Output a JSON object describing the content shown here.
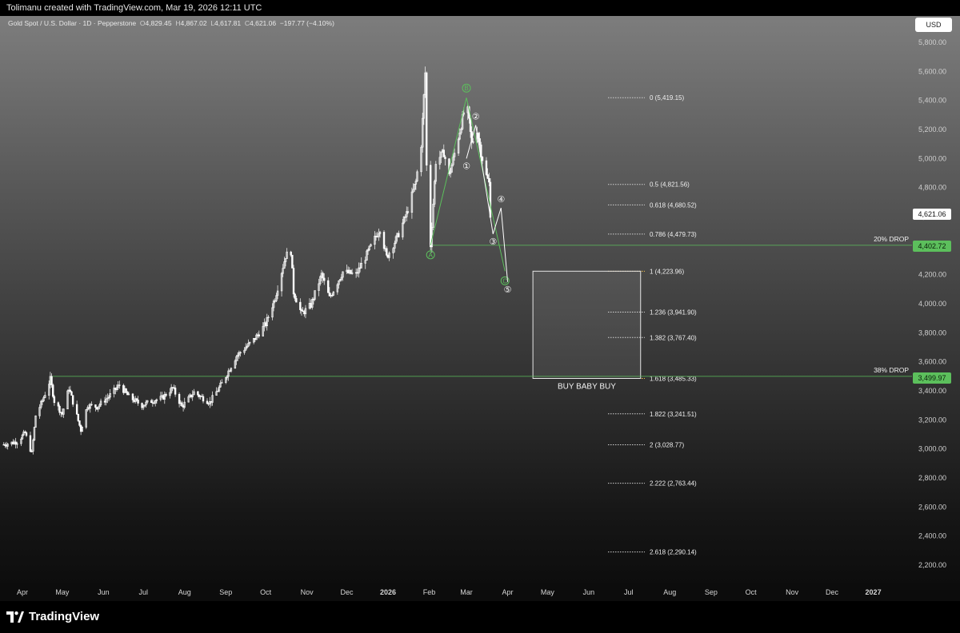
{
  "header": {
    "author_line": "Tolimanu created with TradingView.com, Mar 19, 2026 12:11 UTC"
  },
  "symbol": {
    "name": "Gold Spot / U.S. Dollar · 1D · Pepperstone",
    "o_label": "O",
    "o_value": "4,829.45",
    "h_label": "H",
    "h_value": "4,867.02",
    "l_label": "L",
    "l_value": "4,617.81",
    "c_label": "C",
    "c_value": "4,621.06",
    "change": "−197.77 (−4.10%)"
  },
  "currency_button": "USD",
  "footer": {
    "brand": "TradingView"
  },
  "colors": {
    "green": "#5cbf5c",
    "yellow": "#f2c14e",
    "candle": "#ffffff",
    "fib_dotted": "#d0d0d0"
  },
  "chart_data": {
    "type": "candlestick",
    "y_axis": {
      "ylim": [
        2100,
        5850
      ],
      "ticks": [
        2200,
        2400,
        2600,
        2800,
        3000,
        3200,
        3400,
        3600,
        3800,
        4000,
        4200,
        4400,
        4600,
        4800,
        5000,
        5200,
        5400,
        5600,
        5800
      ],
      "tick_labels": [
        "2,200.00",
        "2,400.00",
        "2,600.00",
        "2,800.00",
        "3,000.00",
        "3,200.00",
        "3,400.00",
        "3,600.00",
        "3,800.00",
        "4,000.00",
        "4,200.00",
        "4,400.00",
        "4,600.00",
        "4,800.00",
        "5,000.00",
        "5,200.00",
        "5,400.00",
        "5,600.00",
        "5,800.00"
      ]
    },
    "x_axis": {
      "labels": [
        "Apr",
        "May",
        "Jun",
        "Jul",
        "Aug",
        "Sep",
        "Oct",
        "Nov",
        "Dec",
        "2026",
        "Feb",
        "Mar",
        "Apr",
        "May",
        "Jun",
        "Jul",
        "Aug",
        "Sep",
        "Oct",
        "Nov",
        "Dec",
        "2027"
      ],
      "label_dates": [
        "2025-04-01",
        "2025-05-01",
        "2025-06-01",
        "2025-07-01",
        "2025-08-01",
        "2025-09-01",
        "2025-10-01",
        "2025-11-01",
        "2025-12-01",
        "2026-01-01",
        "2026-02-01",
        "2026-03-01",
        "2026-04-01",
        "2026-05-01",
        "2026-06-01",
        "2026-07-01",
        "2026-08-01",
        "2026-09-01",
        "2026-10-01",
        "2026-11-01",
        "2026-12-01",
        "2027-01-01"
      ]
    },
    "price_path": [
      [
        "2025-03-18",
        3030
      ],
      [
        "2025-03-28",
        3050
      ],
      [
        "2025-04-03",
        3110
      ],
      [
        "2025-04-08",
        2970
      ],
      [
        "2025-04-11",
        3230
      ],
      [
        "2025-04-16",
        3330
      ],
      [
        "2025-04-22",
        3480
      ],
      [
        "2025-04-25",
        3330
      ],
      [
        "2025-05-01",
        3240
      ],
      [
        "2025-05-06",
        3420
      ],
      [
        "2025-05-15",
        3130
      ],
      [
        "2025-05-20",
        3300
      ],
      [
        "2025-05-27",
        3290
      ],
      [
        "2025-06-05",
        3360
      ],
      [
        "2025-06-13",
        3440
      ],
      [
        "2025-06-20",
        3360
      ],
      [
        "2025-06-30",
        3300
      ],
      [
        "2025-07-07",
        3330
      ],
      [
        "2025-07-15",
        3350
      ],
      [
        "2025-07-23",
        3420
      ],
      [
        "2025-07-30",
        3290
      ],
      [
        "2025-08-08",
        3390
      ],
      [
        "2025-08-20",
        3320
      ],
      [
        "2025-08-29",
        3450
      ],
      [
        "2025-09-09",
        3640
      ],
      [
        "2025-09-22",
        3750
      ],
      [
        "2025-10-01",
        3860
      ],
      [
        "2025-10-08",
        4040
      ],
      [
        "2025-10-16",
        4330
      ],
      [
        "2025-10-20",
        4360
      ],
      [
        "2025-10-22",
        4080
      ],
      [
        "2025-10-28",
        3930
      ],
      [
        "2025-11-04",
        3990
      ],
      [
        "2025-11-12",
        4200
      ],
      [
        "2025-11-18",
        4040
      ],
      [
        "2025-11-28",
        4220
      ],
      [
        "2025-12-08",
        4200
      ],
      [
        "2025-12-15",
        4320
      ],
      [
        "2025-12-26",
        4520
      ],
      [
        "2025-12-31",
        4320
      ],
      [
        "2026-01-08",
        4460
      ],
      [
        "2026-01-15",
        4620
      ],
      [
        "2026-01-22",
        4840
      ],
      [
        "2026-01-26",
        5100
      ],
      [
        "2026-01-29",
        5590
      ],
      [
        "2026-01-30",
        4950
      ],
      [
        "2026-02-02",
        4402.72
      ],
      [
        "2026-02-06",
        4980
      ],
      [
        "2026-02-12",
        5040
      ],
      [
        "2026-02-16",
        4880
      ],
      [
        "2026-02-23",
        5150
      ],
      [
        "2026-03-01",
        5400
      ],
      [
        "2026-03-05",
        5100
      ],
      [
        "2026-03-09",
        5200
      ],
      [
        "2026-03-12",
        5040
      ],
      [
        "2026-03-16",
        4880
      ],
      [
        "2026-03-18",
        4829.45
      ],
      [
        "2026-03-19",
        4621.06
      ]
    ],
    "reference_lines": [
      {
        "label": "20% DROP",
        "value": 4402.72,
        "from": "2026-02-02",
        "price_label": "4,402.72"
      },
      {
        "label": "38% DROP",
        "value": 3499.97,
        "from": "2025-04-22",
        "price_label": "3,499.97"
      }
    ],
    "current_price": {
      "value": 4621.06,
      "label": "4,621.06"
    },
    "fib_levels": [
      {
        "ratio": "0",
        "price": 5419.15,
        "label": "0 (5,419.15)",
        "highlight": false
      },
      {
        "ratio": "0.5",
        "price": 4821.56,
        "label": "0.5 (4,821.56)",
        "highlight": false
      },
      {
        "ratio": "0.618",
        "price": 4680.52,
        "label": "0.618 (4,680.52)",
        "highlight": false
      },
      {
        "ratio": "0.786",
        "price": 4479.73,
        "label": "0.786 (4,479.73)",
        "highlight": false
      },
      {
        "ratio": "1",
        "price": 4223.96,
        "label": "1 (4,223.96)",
        "highlight": true
      },
      {
        "ratio": "1.236",
        "price": 3941.9,
        "label": "1.236 (3,941.90)",
        "highlight": false
      },
      {
        "ratio": "1.382",
        "price": 3767.4,
        "label": "1.382 (3,767.40)",
        "highlight": false
      },
      {
        "ratio": "1.618",
        "price": 3485.33,
        "label": "1.618 (3,485.33)",
        "highlight": true
      },
      {
        "ratio": "1.822",
        "price": 3241.51,
        "label": "1.822 (3,241.51)",
        "highlight": false
      },
      {
        "ratio": "2",
        "price": 3028.77,
        "label": "2 (3,028.77)",
        "highlight": false
      },
      {
        "ratio": "2.222",
        "price": 2763.44,
        "label": "2.222 (2,763.44)",
        "highlight": false
      },
      {
        "ratio": "2.618",
        "price": 2290.14,
        "label": "2.618 (2,290.14)",
        "highlight": false
      }
    ],
    "buy_zone": {
      "top": 4223.96,
      "bottom": 3485.33,
      "from": "2026-04-20",
      "to": "2026-07-10",
      "label": "BUY BABY BUY"
    },
    "abc_wave": [
      {
        "label": "A",
        "date": "2026-02-02",
        "price": 4402.72
      },
      {
        "label": "B",
        "date": "2026-03-01",
        "price": 5419.15
      },
      {
        "label": "C",
        "date": "2026-03-30",
        "price": 4223.96
      }
    ],
    "impulse_wave": [
      {
        "label": "①",
        "date": "2026-03-01",
        "price": 5000
      },
      {
        "label": "②",
        "date": "2026-03-08",
        "price": 5230
      },
      {
        "label": "③",
        "date": "2026-03-21",
        "price": 4480
      },
      {
        "label": "④",
        "date": "2026-03-27",
        "price": 4660
      },
      {
        "label": "⑤",
        "date": "2026-04-01",
        "price": 4150
      }
    ]
  }
}
